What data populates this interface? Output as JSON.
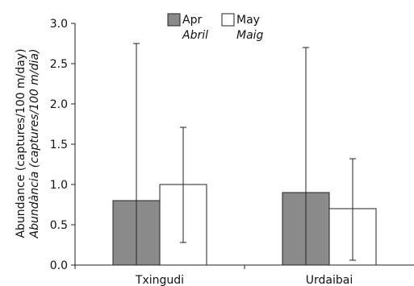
{
  "chart_data": {
    "type": "bar",
    "categories": [
      "Txingudi",
      "Urdaibai"
    ],
    "series": [
      {
        "name": "Apr",
        "name_alt": "Abril",
        "color": "#8a8a8a",
        "values": [
          0.8,
          0.9
        ],
        "error_high": [
          2.75,
          2.7
        ]
      },
      {
        "name": "May",
        "name_alt": "Maig",
        "color": "#ffffff",
        "values": [
          1.0,
          0.7
        ],
        "error_high": [
          1.71,
          1.32
        ],
        "error_low": [
          0.28,
          0.06
        ]
      }
    ],
    "ylabel": "Abundance (captures/100 m/day)",
    "ylabel_alt": "Abundància (captures/100 m/dia)",
    "ylim": [
      0,
      3.0
    ],
    "yticks": [
      "0.0",
      "0.5",
      "1.0",
      "1.5",
      "2.0",
      "2.5",
      "3.0"
    ],
    "grid": false,
    "legend_position": "top-left"
  }
}
